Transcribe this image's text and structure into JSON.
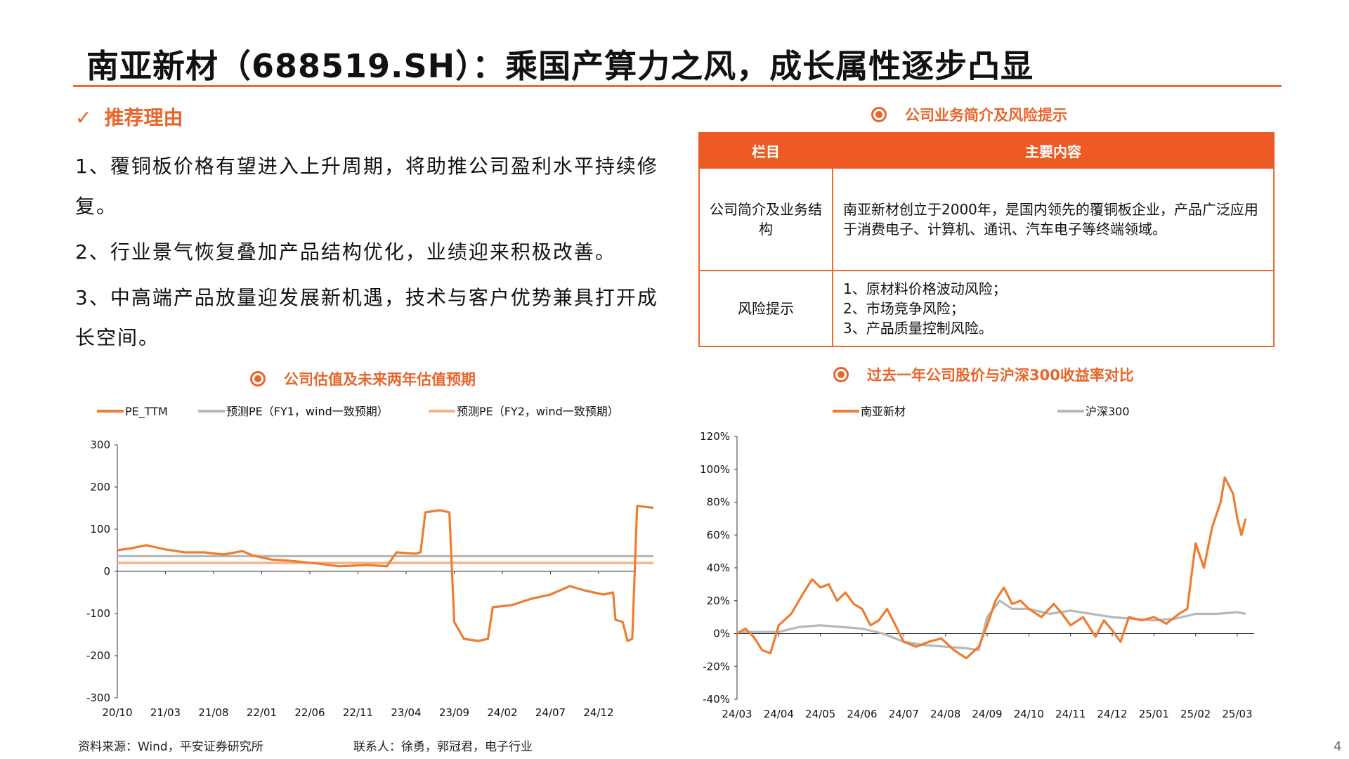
{
  "header": {
    "title": "南亚新材（688519.SH）：乘国产算力之风，成长属性逐步凸显"
  },
  "reasons": {
    "heading": "推荐理由",
    "items": [
      "1、覆铜板价格有望进入上升周期，将助推公司盈利水平持续修复。",
      "2、行业景气恢复叠加产品结构优化，业绩迎来积极改善。",
      "3、中高端产品放量迎发展新机遇，技术与客户优势兼具打开成长空间。"
    ]
  },
  "business": {
    "heading": "公司业务简介及风险提示",
    "table_headers": [
      "栏目",
      "主要内容"
    ],
    "rows": [
      {
        "label": "公司简介及业务结构",
        "content": [
          "南亚新材创立于2000年，是国内领先的覆铜板企业，产品广泛应用于消费电子、计算机、通讯、汽车电子等终端领域。"
        ]
      },
      {
        "label": "风险提示",
        "content": [
          "1、原材料价格波动风险；",
          "2、市场竞争风险；",
          "3、产品质量控制风险。"
        ]
      }
    ]
  },
  "valuation": {
    "heading": "公司估值及未来两年估值预期"
  },
  "comparison": {
    "heading": "过去一年公司股价与沪深300收益率对比"
  },
  "chart_data": [
    {
      "type": "line",
      "legend_position": "top",
      "grid": false,
      "ylim": [
        -300,
        300
      ],
      "y_ticks": [
        "300",
        "200",
        "100",
        "0",
        "-100",
        "-200",
        "-300"
      ],
      "x_ticks": [
        "20/10",
        "21/03",
        "21/08",
        "22/01",
        "22/06",
        "22/11",
        "23/04",
        "23/09",
        "24/02",
        "24/07",
        "24/12"
      ],
      "series": [
        {
          "name": "PE_TTM",
          "color": "#ed7d31",
          "points": [
            [
              0,
              50
            ],
            [
              0.3,
              55
            ],
            [
              0.6,
              62
            ],
            [
              1,
              52
            ],
            [
              1.4,
              45
            ],
            [
              1.8,
              45
            ],
            [
              2.2,
              40
            ],
            [
              2.6,
              48
            ],
            [
              2.8,
              38
            ],
            [
              3.2,
              28
            ],
            [
              3.6,
              25
            ],
            [
              4.2,
              18
            ],
            [
              4.6,
              12
            ],
            [
              5.2,
              15
            ],
            [
              5.6,
              12
            ],
            [
              5.8,
              45
            ],
            [
              6.2,
              42
            ],
            [
              6.3,
              45
            ],
            [
              6.4,
              140
            ],
            [
              6.7,
              145
            ],
            [
              6.9,
              140
            ],
            [
              7,
              -120
            ],
            [
              7.2,
              -160
            ],
            [
              7.5,
              -165
            ],
            [
              7.7,
              -160
            ],
            [
              7.8,
              -85
            ],
            [
              8.2,
              -80
            ],
            [
              8.6,
              -65
            ],
            [
              9,
              -55
            ],
            [
              9.4,
              -35
            ],
            [
              9.7,
              -45
            ],
            [
              10.1,
              -55
            ],
            [
              10.3,
              -50
            ],
            [
              10.35,
              -115
            ],
            [
              10.5,
              -120
            ],
            [
              10.6,
              -165
            ],
            [
              10.7,
              -160
            ],
            [
              10.8,
              155
            ],
            [
              11.2,
              150
            ],
            [
              11.5,
              145
            ],
            [
              11.7,
              160
            ],
            [
              11.9,
              210
            ],
            [
              12.1,
              155
            ]
          ]
        },
        {
          "name": "预测PE（FY1，wind一致预期）",
          "color": "#b8b8b8",
          "points": [
            [
              0,
              36
            ],
            [
              12.1,
              36
            ]
          ]
        },
        {
          "name": "预测PE（FY2，wind一致预期）",
          "color": "#f4b183",
          "points": [
            [
              0,
              20
            ],
            [
              12.1,
              20
            ]
          ]
        }
      ]
    },
    {
      "type": "line",
      "legend_position": "top",
      "grid": false,
      "ylim": [
        -40,
        120
      ],
      "y_ticks": [
        "120%",
        "100%",
        "80%",
        "60%",
        "40%",
        "20%",
        "0%",
        "-20%",
        "-40%"
      ],
      "x_ticks": [
        "24/03",
        "24/04",
        "24/05",
        "24/06",
        "24/07",
        "24/08",
        "24/09",
        "24/10",
        "24/11",
        "24/12",
        "25/01",
        "25/02",
        "25/03"
      ],
      "series": [
        {
          "name": "南亚新材",
          "color": "#ed7d31",
          "points": [
            [
              0,
              0
            ],
            [
              0.2,
              3
            ],
            [
              0.4,
              -2
            ],
            [
              0.6,
              -10
            ],
            [
              0.8,
              -12
            ],
            [
              1,
              5
            ],
            [
              1.3,
              12
            ],
            [
              1.6,
              25
            ],
            [
              1.8,
              33
            ],
            [
              2,
              28
            ],
            [
              2.2,
              30
            ],
            [
              2.4,
              20
            ],
            [
              2.6,
              25
            ],
            [
              2.8,
              18
            ],
            [
              3,
              15
            ],
            [
              3.2,
              5
            ],
            [
              3.4,
              8
            ],
            [
              3.6,
              15
            ],
            [
              3.8,
              5
            ],
            [
              4,
              -5
            ],
            [
              4.3,
              -8
            ],
            [
              4.6,
              -5
            ],
            [
              4.9,
              -3
            ],
            [
              5.2,
              -10
            ],
            [
              5.5,
              -15
            ],
            [
              5.8,
              -8
            ],
            [
              6,
              5
            ],
            [
              6.2,
              20
            ],
            [
              6.4,
              28
            ],
            [
              6.6,
              18
            ],
            [
              6.8,
              20
            ],
            [
              7,
              15
            ],
            [
              7.3,
              10
            ],
            [
              7.6,
              18
            ],
            [
              7.8,
              12
            ],
            [
              8,
              5
            ],
            [
              8.3,
              10
            ],
            [
              8.6,
              -2
            ],
            [
              8.8,
              8
            ],
            [
              9,
              2
            ],
            [
              9.2,
              -5
            ],
            [
              9.4,
              10
            ],
            [
              9.7,
              8
            ],
            [
              10,
              10
            ],
            [
              10.3,
              6
            ],
            [
              10.6,
              12
            ],
            [
              10.8,
              15
            ],
            [
              11,
              55
            ],
            [
              11.2,
              40
            ],
            [
              11.4,
              65
            ],
            [
              11.6,
              80
            ],
            [
              11.7,
              95
            ],
            [
              11.9,
              85
            ],
            [
              12,
              70
            ],
            [
              12.1,
              60
            ],
            [
              12.2,
              70
            ]
          ]
        },
        {
          "name": "沪深300",
          "color": "#b8b8b8",
          "points": [
            [
              0,
              1
            ],
            [
              1,
              1
            ],
            [
              1.5,
              4
            ],
            [
              2,
              5
            ],
            [
              2.5,
              4
            ],
            [
              3,
              3
            ],
            [
              3.5,
              0
            ],
            [
              4,
              -5
            ],
            [
              4.5,
              -7
            ],
            [
              5,
              -8
            ],
            [
              5.5,
              -9
            ],
            [
              5.8,
              -10
            ],
            [
              6,
              10
            ],
            [
              6.3,
              20
            ],
            [
              6.6,
              15
            ],
            [
              7,
              15
            ],
            [
              7.5,
              12
            ],
            [
              8,
              14
            ],
            [
              8.5,
              12
            ],
            [
              9,
              10
            ],
            [
              9.5,
              9
            ],
            [
              10,
              8
            ],
            [
              10.5,
              9
            ],
            [
              11,
              12
            ],
            [
              11.5,
              12
            ],
            [
              12,
              13
            ],
            [
              12.2,
              12
            ]
          ]
        }
      ]
    }
  ],
  "footer": {
    "source": "资料来源：Wind，平安证券研究所",
    "contact": "联系人：徐勇，郭冠君，电子行业",
    "page": "4"
  }
}
